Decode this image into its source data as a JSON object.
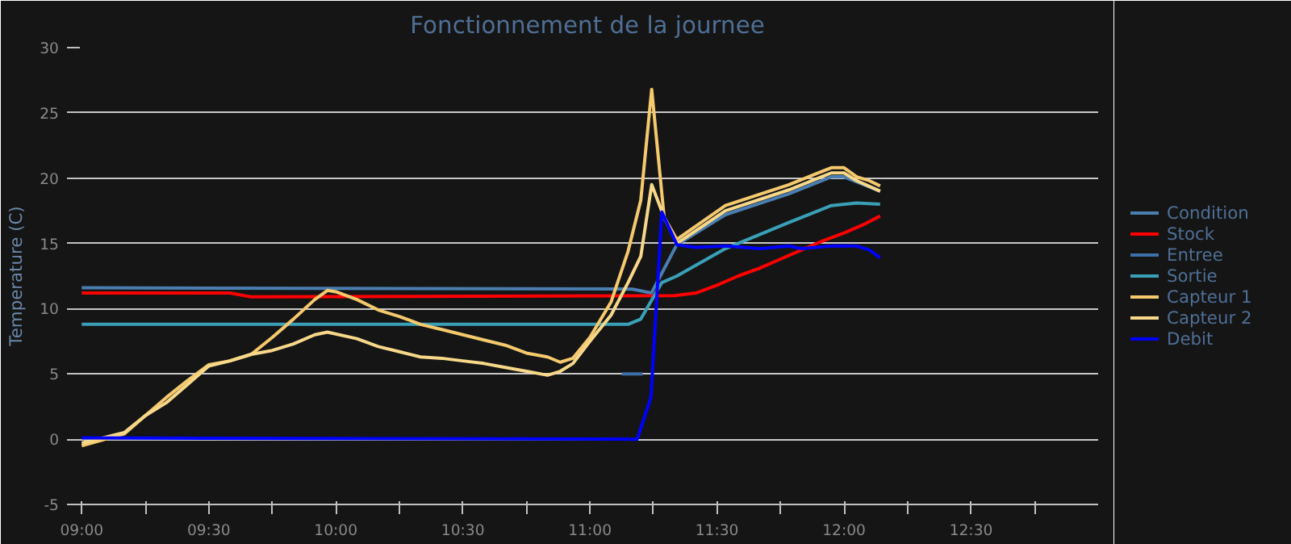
{
  "chart_data": {
    "type": "line",
    "title": "Fonctionnement de la journee",
    "ylabel": "Temperature (C)",
    "xlim": [
      8.98,
      13.0
    ],
    "ylim": [
      -5,
      30
    ],
    "yticks": [
      -5,
      0,
      5,
      10,
      15,
      20,
      25,
      30
    ],
    "xticks": [
      {
        "value": 9.0,
        "label": "09:00"
      },
      {
        "value": 9.25,
        "label": null
      },
      {
        "value": 9.5,
        "label": "09:30"
      },
      {
        "value": 9.75,
        "label": null
      },
      {
        "value": 10.0,
        "label": "10:00"
      },
      {
        "value": 10.25,
        "label": null
      },
      {
        "value": 10.5,
        "label": "10:30"
      },
      {
        "value": 10.75,
        "label": null
      },
      {
        "value": 11.0,
        "label": "11:00"
      },
      {
        "value": 11.25,
        "label": null
      },
      {
        "value": 11.5,
        "label": "11:30"
      },
      {
        "value": 11.75,
        "label": null
      },
      {
        "value": 12.0,
        "label": "12:00"
      },
      {
        "value": 12.25,
        "label": null
      },
      {
        "value": 12.5,
        "label": "12:30"
      },
      {
        "value": 12.75,
        "label": null
      }
    ],
    "grid": "y",
    "legend": "right",
    "marker": "none",
    "line_style": "solid",
    "series": [
      {
        "name": "Condition",
        "color": "#4a7eb0",
        "x": [
          9.0,
          11.167,
          11.242,
          11.342,
          11.533,
          11.783,
          11.95,
          12.0,
          12.142
        ],
        "values": [
          11.6,
          11.5,
          11.2,
          14.9,
          17.2,
          18.8,
          20.1,
          20.1,
          19.0
        ]
      },
      {
        "name": "Stock",
        "color": "#ff0000",
        "x": [
          9.0,
          9.583,
          9.667,
          11.333,
          11.417,
          11.5,
          11.583,
          11.667,
          11.75,
          11.833,
          11.917,
          12.0,
          12.083,
          12.142
        ],
        "values": [
          11.2,
          11.2,
          10.9,
          11.0,
          11.2,
          11.8,
          12.5,
          13.1,
          13.8,
          14.5,
          15.2,
          15.8,
          16.5,
          17.1
        ]
      },
      {
        "name": "Entree",
        "color": "#3d6fa8",
        "x": [
          11.125,
          11.167,
          11.208
        ],
        "values": [
          5.0,
          5.0,
          5.0
        ]
      },
      {
        "name": "Sortie",
        "color": "#3aa0b8",
        "x": [
          9.0,
          11.15,
          11.2,
          11.283,
          11.342,
          11.533,
          11.783,
          11.95,
          12.05,
          12.142
        ],
        "values": [
          8.8,
          8.8,
          9.2,
          12.0,
          12.5,
          14.6,
          16.6,
          17.9,
          18.1,
          18.0
        ]
      },
      {
        "name": "Capteur 1",
        "color": "#f5c96e",
        "x": [
          9.0,
          9.167,
          9.25,
          9.333,
          9.417,
          9.5,
          9.583,
          9.667,
          9.75,
          9.833,
          9.917,
          9.967,
          10.0,
          10.083,
          10.167,
          10.25,
          10.333,
          10.417,
          10.5,
          10.583,
          10.667,
          10.75,
          10.833,
          10.883,
          10.933,
          11.0,
          11.083,
          11.15,
          11.2,
          11.243,
          11.292,
          11.342,
          11.533,
          11.783,
          11.95,
          12.0,
          12.05,
          12.1,
          12.142
        ],
        "values": [
          -0.5,
          0.4,
          1.8,
          3.2,
          4.5,
          5.7,
          6.0,
          6.5,
          7.8,
          9.2,
          10.7,
          11.4,
          11.3,
          10.7,
          9.9,
          9.4,
          8.8,
          8.4,
          8.0,
          7.6,
          7.2,
          6.6,
          6.3,
          5.9,
          6.2,
          7.8,
          10.5,
          14.4,
          18.3,
          26.8,
          17.0,
          15.3,
          17.9,
          19.5,
          20.8,
          20.8,
          20.1,
          19.8,
          19.4
        ]
      },
      {
        "name": "Capteur 2",
        "color": "#f7d88a",
        "x": [
          9.0,
          9.167,
          9.25,
          9.333,
          9.417,
          9.5,
          9.583,
          9.667,
          9.75,
          9.833,
          9.917,
          9.967,
          10.083,
          10.167,
          10.25,
          10.333,
          10.417,
          10.5,
          10.583,
          10.667,
          10.75,
          10.833,
          10.883,
          10.933,
          11.0,
          11.083,
          11.15,
          11.2,
          11.243,
          11.292,
          11.342,
          11.533,
          11.783,
          11.95,
          12.0,
          12.05,
          12.142
        ],
        "values": [
          -0.3,
          0.5,
          1.8,
          2.8,
          4.2,
          5.6,
          6.0,
          6.5,
          6.8,
          7.3,
          8.0,
          8.2,
          7.7,
          7.1,
          6.7,
          6.3,
          6.2,
          6.0,
          5.8,
          5.5,
          5.2,
          4.9,
          5.2,
          5.8,
          7.5,
          9.5,
          12.0,
          14.0,
          19.5,
          17.0,
          15.0,
          17.5,
          19.1,
          20.4,
          20.4,
          19.8,
          19.0
        ]
      },
      {
        "name": "Debit",
        "color": "#0000ff",
        "x": [
          9.0,
          11.186,
          11.24,
          11.283,
          11.342,
          11.417,
          11.533,
          11.667,
          11.783,
          11.833,
          11.95,
          12.05,
          12.1,
          12.142
        ],
        "values": [
          0.1,
          0.0,
          3.2,
          17.4,
          14.9,
          14.7,
          14.8,
          14.6,
          14.8,
          14.6,
          14.8,
          14.8,
          14.5,
          13.9
        ]
      }
    ]
  }
}
